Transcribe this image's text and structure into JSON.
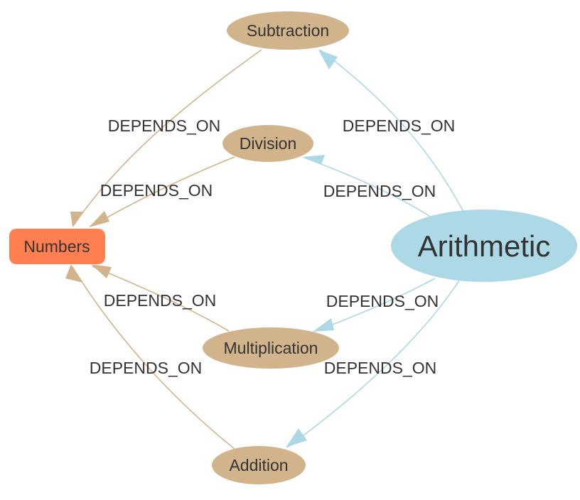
{
  "colors": {
    "background": "#ffffff",
    "numbers_fill": "#ff7f50",
    "operation_fill": "#d2b48c",
    "arithmetic_fill": "#add8e6",
    "edge_tan": "#d2b48c",
    "edge_blue": "#add8e6",
    "label_text": "#333333"
  },
  "nodes": {
    "subtraction": "Subtraction",
    "division": "Division",
    "numbers": "Numbers",
    "arithmetic": "Arithmetic",
    "multiplication": "Multiplication",
    "addition": "Addition"
  },
  "edges": {
    "subtraction_numbers": "DEPENDS_ON",
    "division_numbers": "DEPENDS_ON",
    "multiplication_numbers": "DEPENDS_ON",
    "addition_numbers": "DEPENDS_ON",
    "arithmetic_subtraction": "DEPENDS_ON",
    "arithmetic_division": "DEPENDS_ON",
    "arithmetic_multiplication": "DEPENDS_ON",
    "arithmetic_addition": "DEPENDS_ON"
  }
}
